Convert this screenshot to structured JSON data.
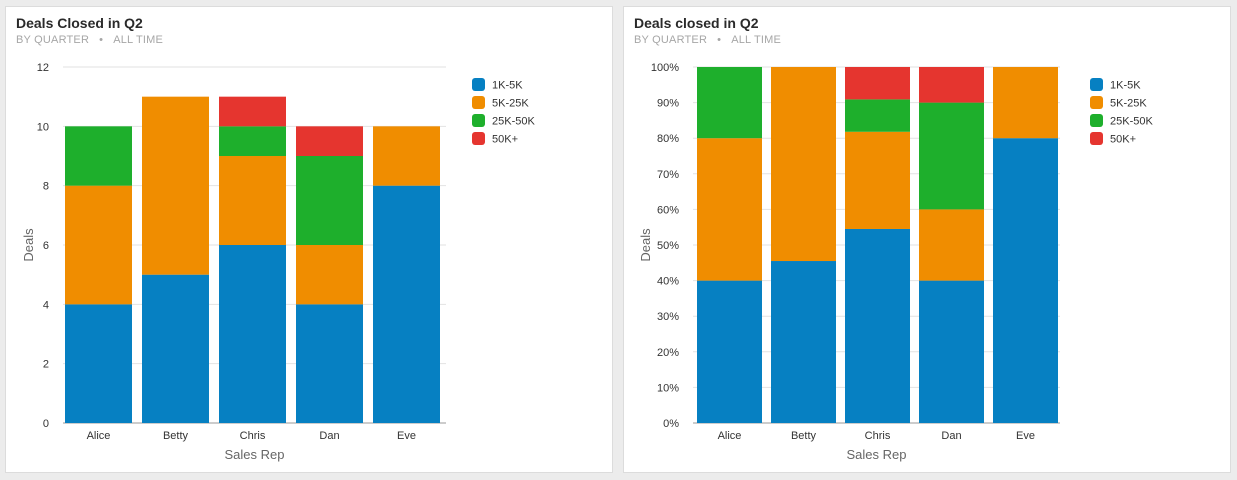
{
  "colors": {
    "1K-5K": "#0680c2",
    "5K-25K": "#f08d00",
    "25K-50K": "#1eaf2c",
    "50K+": "#e5352f"
  },
  "chart_data": [
    {
      "type": "bar",
      "stacked": true,
      "title": "Deals Closed in Q2",
      "subtitle": [
        "BY QUARTER",
        "ALL TIME"
      ],
      "xlabel": "Sales Rep",
      "ylabel": "Deals",
      "ylim": [
        0,
        12
      ],
      "yticks": [
        0,
        2,
        4,
        6,
        8,
        10,
        12
      ],
      "ytick_labels": [
        "0",
        "2",
        "4",
        "6",
        "8",
        "10",
        "12"
      ],
      "grid": true,
      "legend_position": "right",
      "categories": [
        "Alice",
        "Betty",
        "Chris",
        "Dan",
        "Eve"
      ],
      "series": [
        {
          "name": "1K-5K",
          "values": [
            4,
            5,
            6,
            4,
            8
          ]
        },
        {
          "name": "5K-25K",
          "values": [
            4,
            6,
            3,
            2,
            2
          ]
        },
        {
          "name": "25K-50K",
          "values": [
            2,
            0,
            1,
            3,
            0
          ]
        },
        {
          "name": "50K+",
          "values": [
            0,
            0,
            1,
            1,
            0
          ]
        }
      ]
    },
    {
      "type": "bar",
      "stacked": true,
      "normalized": true,
      "title": "Deals closed in Q2",
      "subtitle": [
        "BY QUARTER",
        "ALL TIME"
      ],
      "xlabel": "Sales Rep",
      "ylabel": "Deals",
      "ylim": [
        0,
        100
      ],
      "yticks": [
        0,
        10,
        20,
        30,
        40,
        50,
        60,
        70,
        80,
        90,
        100
      ],
      "ytick_labels": [
        "0%",
        "10%",
        "20%",
        "30%",
        "40%",
        "50%",
        "60%",
        "70%",
        "80%",
        "90%",
        "100%"
      ],
      "grid": true,
      "legend_position": "right",
      "categories": [
        "Alice",
        "Betty",
        "Chris",
        "Dan",
        "Eve"
      ],
      "series": [
        {
          "name": "1K-5K",
          "values": [
            40,
            45.5,
            54.5,
            40,
            80
          ]
        },
        {
          "name": "5K-25K",
          "values": [
            40,
            54.5,
            27.3,
            20,
            20
          ]
        },
        {
          "name": "25K-50K",
          "values": [
            20,
            0,
            9.1,
            30,
            0
          ]
        },
        {
          "name": "50K+",
          "values": [
            0,
            0,
            9.1,
            10,
            0
          ]
        }
      ]
    }
  ]
}
